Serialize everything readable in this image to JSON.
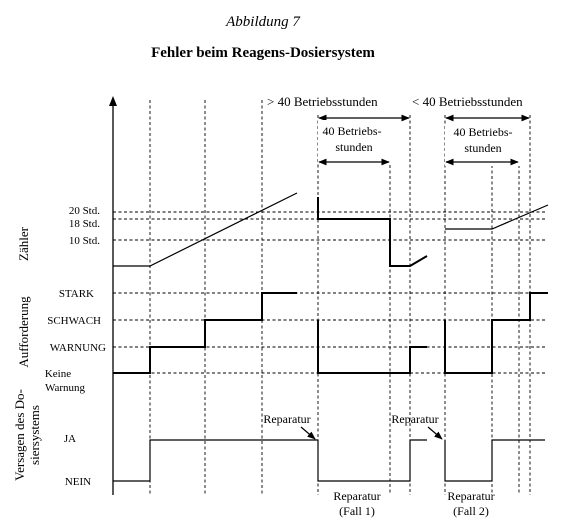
{
  "caption": "Abbildung 7",
  "title": "Fehler beim Reagens-Dosiersystem",
  "rows": {
    "zaehler": "Zähler",
    "aufforderung": "Aufforderung",
    "versagen_line1": "Versagen des Do-",
    "versagen_line2": "siersystems"
  },
  "ticks": {
    "std20": "20 Std.",
    "std18": "18 Std.",
    "std10": "10 Std.",
    "stark": "STARK",
    "schwach": "SCHWACH",
    "warnung": "WARNUNG",
    "keine1": "Keine",
    "keine2": "Warnung",
    "ja": "JA",
    "nein": "NEIN"
  },
  "annotations": {
    "gt40": "> 40 Betriebsstunden",
    "lt40": "< 40 Betriebsstunden",
    "b1_line1": "40 Betriebs-",
    "b1_line2": "stunden",
    "b2_line1": "40 Betriebs-",
    "b2_line2": "stunden",
    "reparatur_a": "Reparatur",
    "reparatur_b": "Reparatur",
    "fall1_line1": "Reparatur",
    "fall1_line2": "(Fall 1)",
    "fall2_line1": "Reparatur",
    "fall2_line2": "(Fall 2)"
  }
}
